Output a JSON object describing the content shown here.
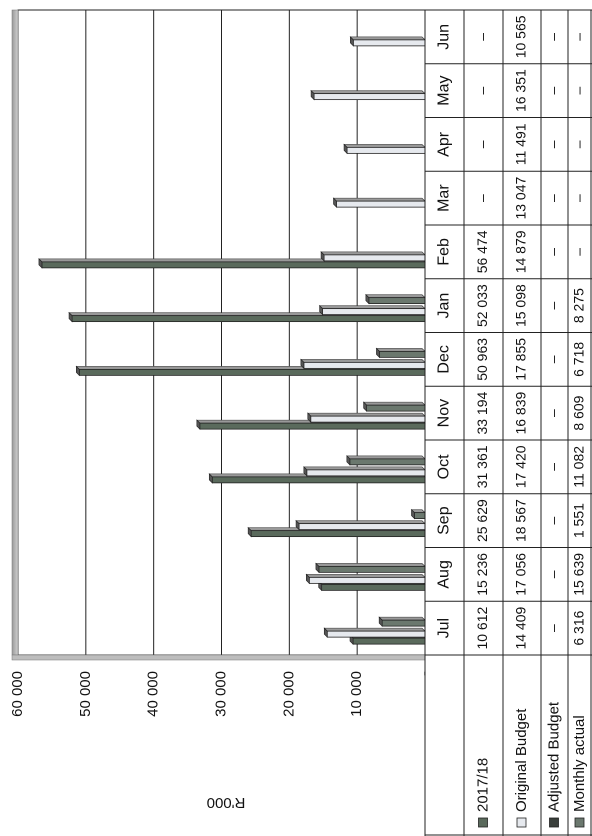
{
  "chart_data": {
    "type": "bar",
    "orientation": "rotated-90-clockwise",
    "unit": "R'000",
    "categories": [
      "Jul",
      "Aug",
      "Sep",
      "Oct",
      "Nov",
      "Dec",
      "Jan",
      "Feb",
      "Mar",
      "Apr",
      "May",
      "Jun"
    ],
    "ylim": [
      0,
      60000
    ],
    "yticks": [
      0,
      10000,
      20000,
      30000,
      40000,
      50000,
      60000
    ],
    "ytick_labels": [
      "-",
      "10 000",
      "20 000",
      "30 000",
      "40 000",
      "50 000",
      "60 000"
    ],
    "grid": true,
    "legend_placement": "data-table",
    "series": [
      {
        "name": "2017/18",
        "color": "#5a6a5c",
        "values": [
          10612,
          15236,
          25629,
          31361,
          33194,
          50963,
          52033,
          56474,
          null,
          null,
          null,
          null
        ],
        "table_cells": [
          "10 612",
          "15 236",
          "25 629",
          "31 361",
          "33 194",
          "50 963",
          "52 033",
          "56 474",
          "–",
          "–",
          "–",
          "–"
        ]
      },
      {
        "name": "Original Budget",
        "color": "#e6e9ee",
        "values": [
          14409,
          17056,
          18567,
          17420,
          16839,
          17855,
          15098,
          14879,
          13047,
          11491,
          16351,
          10565
        ],
        "table_cells": [
          "14 409",
          "17 056",
          "18 567",
          "17 420",
          "16 839",
          "17 855",
          "15 098",
          "14 879",
          "13 047",
          "11 491",
          "16 351",
          "10 565"
        ]
      },
      {
        "name": "Adjusted Budget",
        "color": "#3a3f3b",
        "values": [
          null,
          null,
          null,
          null,
          null,
          null,
          null,
          null,
          null,
          null,
          null,
          null
        ],
        "table_cells": [
          "–",
          "–",
          "–",
          "–",
          "–",
          "–",
          "–",
          "–",
          "–",
          "–",
          "–",
          "–"
        ]
      },
      {
        "name": "Monthly actual",
        "color": "#6b786e",
        "values": [
          6316,
          15639,
          1551,
          11082,
          8609,
          6718,
          8275,
          null,
          null,
          null,
          null,
          null
        ],
        "table_cells": [
          "6 316",
          "15 639",
          "1 551",
          "11 082",
          "8 609",
          "6 718",
          "8 275",
          "–",
          "–",
          "–",
          "–",
          "–"
        ]
      }
    ]
  }
}
